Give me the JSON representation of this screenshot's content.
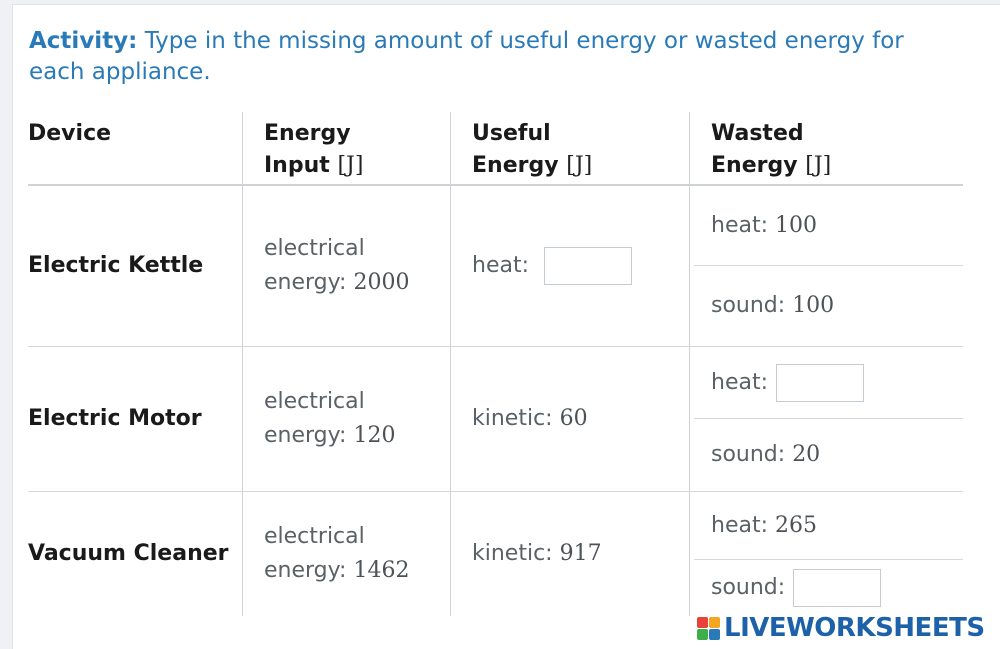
{
  "activity": {
    "lead": "Activity:",
    "text": "Type in the missing amount of useful energy or wasted energy for each appliance."
  },
  "table": {
    "headers": {
      "device": "Device",
      "input_line1": "Energy",
      "input_line2": "Input",
      "useful_line1": "Useful",
      "useful_line2": "Energy",
      "wasted_line1": "Wasted",
      "wasted_line2": "Energy",
      "unit": "[J]"
    },
    "rows": [
      {
        "device": "Electric Kettle",
        "input_label1": "electrical",
        "input_label2": "energy:",
        "input_value": "2000",
        "useful_label": "heat:",
        "useful_value": "",
        "wasted_top_label": "heat:",
        "wasted_top_value": "100",
        "wasted_bottom_label": "sound:",
        "wasted_bottom_value": "100"
      },
      {
        "device": "Electric Motor",
        "input_label1": "electrical",
        "input_label2": "energy:",
        "input_value": "120",
        "useful_label": "kinetic:",
        "useful_value": "60",
        "wasted_top_label": "heat:",
        "wasted_top_value": "",
        "wasted_bottom_label": "sound:",
        "wasted_bottom_value": "20"
      },
      {
        "device": "Vacuum Cleaner",
        "input_label1": "electrical",
        "input_label2": "energy:",
        "input_value": "1462",
        "useful_label": "kinetic:",
        "useful_value": "917",
        "wasted_top_label": "heat:",
        "wasted_top_value": "265",
        "wasted_bottom_label": "sound:",
        "wasted_bottom_value": ""
      }
    ]
  },
  "branding": {
    "logo_text": "LIVEWORKSHEETS",
    "logo_colors": [
      "#e8423b",
      "#f4a623",
      "#3cae4a",
      "#2a7ab8"
    ]
  }
}
